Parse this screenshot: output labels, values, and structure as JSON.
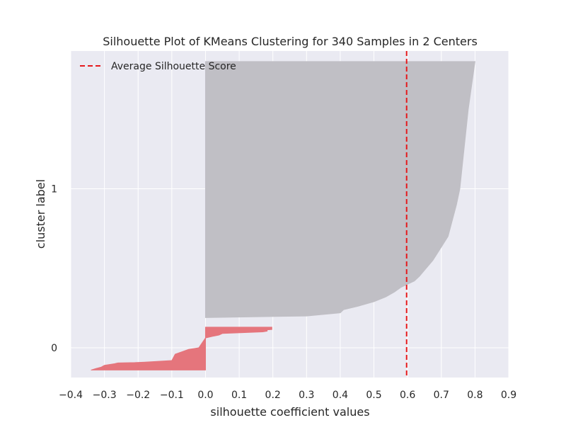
{
  "chart_data": {
    "type": "area",
    "title": "Silhouette Plot of KMeans Clustering for 340 Samples in 2 Centers",
    "xlabel": "silhouette coefficient values",
    "ylabel": "cluster label",
    "xlim": [
      -0.4,
      0.9
    ],
    "xticks": [
      -0.4,
      -0.3,
      -0.2,
      -0.1,
      0.0,
      0.1,
      0.2,
      0.3,
      0.4,
      0.5,
      0.6,
      0.7,
      0.8,
      0.9
    ],
    "xtick_labels": [
      "−0.4",
      "−0.3",
      "−0.2",
      "−0.1",
      "0.0",
      "0.1",
      "0.2",
      "0.3",
      "0.4",
      "0.5",
      "0.6",
      "0.7",
      "0.8",
      "0.9"
    ],
    "yticks": [
      0,
      1
    ],
    "ytick_labels": [
      "0",
      "1"
    ],
    "grid": true,
    "legend_position": "top-left",
    "average_silhouette_score": 0.597,
    "average_line_color": "#e5191c",
    "background_color": "#eaeaf2",
    "clusters": [
      {
        "label": "0",
        "color": "#e5757c",
        "y_range": [
          -0.14,
          0.13
        ],
        "profile": [
          [
            0.13,
            0.197
          ],
          [
            0.115,
            0.197
          ],
          [
            0.113,
            0.183
          ],
          [
            0.105,
            0.183
          ],
          [
            0.1,
            0.17
          ],
          [
            0.09,
            0.05
          ],
          [
            0.08,
            0.04
          ],
          [
            0.072,
            0.02
          ],
          [
            0.062,
            0.0
          ],
          [
            0.0,
            -0.02
          ],
          [
            -0.01,
            -0.05
          ],
          [
            -0.04,
            -0.09
          ],
          [
            -0.08,
            -0.1
          ],
          [
            -0.09,
            -0.18
          ],
          [
            -0.093,
            -0.21
          ],
          [
            -0.095,
            -0.26
          ],
          [
            -0.1,
            -0.27
          ],
          [
            -0.11,
            -0.3
          ],
          [
            -0.122,
            -0.31
          ],
          [
            -0.13,
            -0.325
          ],
          [
            -0.14,
            -0.34
          ]
        ]
      },
      {
        "label": "1",
        "color": "#c0bfc5",
        "y_range": [
          0.19,
          1.8
        ],
        "profile": [
          [
            1.8,
            0.8
          ],
          [
            1.5,
            0.78
          ],
          [
            1.3,
            0.77
          ],
          [
            1.2,
            0.765
          ],
          [
            1.0,
            0.755
          ],
          [
            0.9,
            0.745
          ],
          [
            0.7,
            0.72
          ],
          [
            0.65,
            0.705
          ],
          [
            0.6,
            0.69
          ],
          [
            0.55,
            0.675
          ],
          [
            0.5,
            0.655
          ],
          [
            0.45,
            0.635
          ],
          [
            0.42,
            0.62
          ],
          [
            0.4,
            0.6
          ],
          [
            0.38,
            0.58
          ],
          [
            0.35,
            0.56
          ],
          [
            0.32,
            0.535
          ],
          [
            0.29,
            0.5
          ],
          [
            0.26,
            0.45
          ],
          [
            0.24,
            0.41
          ],
          [
            0.22,
            0.4
          ],
          [
            0.2,
            0.3
          ],
          [
            0.19,
            0.0
          ]
        ]
      }
    ],
    "legend": [
      {
        "label": "Average Silhouette Score",
        "style": "dashed",
        "color": "#e5191c"
      }
    ]
  }
}
